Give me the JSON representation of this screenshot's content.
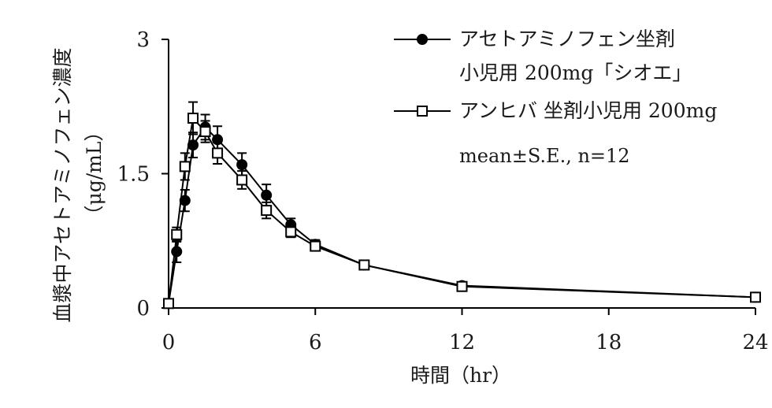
{
  "chart_data": {
    "type": "line",
    "xlabel": "時間（hr）",
    "ylabel_line1": "血漿中アセトアミノフェン濃度",
    "ylabel_line2": "（μg/mL）",
    "xlim": [
      0,
      24
    ],
    "ylim": [
      0,
      3
    ],
    "xticks": [
      0,
      6,
      12,
      18,
      24
    ],
    "yticks": [
      0,
      1.5,
      3
    ],
    "ytick_labels": [
      "0",
      "1.5",
      "3"
    ],
    "grid": false,
    "legend_position": "top-right",
    "note": "mean±S.E., n=12",
    "series": [
      {
        "name": "アセトアミノフェン坐剤",
        "name_line2": "小児用 200mg「シオエ」",
        "marker": "filled-circle",
        "color": "#000000",
        "x": [
          0,
          0.33,
          0.67,
          1,
          1.5,
          2,
          3,
          4,
          5,
          6,
          8,
          12,
          24
        ],
        "y": [
          0.05,
          0.63,
          1.2,
          1.82,
          2.02,
          1.88,
          1.6,
          1.26,
          0.93,
          0.71,
          0.48,
          0.25,
          0.12
        ],
        "err": [
          0.0,
          0.12,
          0.12,
          0.14,
          0.14,
          0.15,
          0.13,
          0.12,
          0.07,
          0.05,
          0.03,
          0.02,
          0.02
        ]
      },
      {
        "name": "アンヒバ 坐剤小児用 200mg",
        "marker": "open-square",
        "color": "#000000",
        "x": [
          0,
          0.33,
          0.67,
          1,
          1.5,
          2,
          3,
          4,
          5,
          6,
          8,
          12,
          24
        ],
        "y": [
          0.05,
          0.82,
          1.58,
          2.12,
          1.97,
          1.73,
          1.43,
          1.09,
          0.85,
          0.69,
          0.48,
          0.24,
          0.12
        ],
        "err": [
          0.0,
          0.08,
          0.15,
          0.18,
          0.12,
          0.12,
          0.1,
          0.09,
          0.06,
          0.05,
          0.03,
          0.02,
          0.02
        ]
      }
    ]
  }
}
